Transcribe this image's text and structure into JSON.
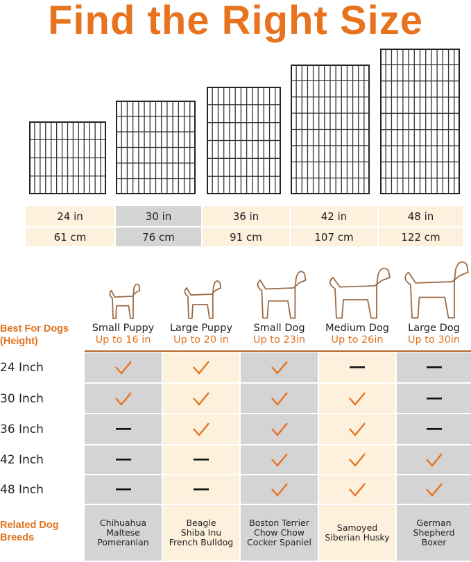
{
  "title": "Find the Right Size",
  "sizes": [
    {
      "in": "24 in",
      "cm": "61 cm"
    },
    {
      "in": "30 in",
      "cm": "76 cm"
    },
    {
      "in": "36 in",
      "cm": "91 cm"
    },
    {
      "in": "42 in",
      "cm": "107 cm"
    },
    {
      "in": "48 in",
      "cm": "122 cm"
    }
  ],
  "best_for_label": "Best For Dogs (Height)",
  "dogs": [
    {
      "name": "Small Puppy",
      "height": "Up to 16 in"
    },
    {
      "name": "Large Puppy",
      "height": "Up to 20 in"
    },
    {
      "name": "Small Dog",
      "height": "Up to 23in"
    },
    {
      "name": "Medium Dog",
      "height": "Up to 26in"
    },
    {
      "name": "Large Dog",
      "height": "Up to 30in"
    }
  ],
  "rows": [
    {
      "label": "24 Inch",
      "fit": [
        true,
        true,
        true,
        false,
        false
      ]
    },
    {
      "label": "30 Inch",
      "fit": [
        true,
        true,
        true,
        true,
        false
      ]
    },
    {
      "label": "36 Inch",
      "fit": [
        false,
        true,
        true,
        true,
        false
      ]
    },
    {
      "label": "42 Inch",
      "fit": [
        false,
        false,
        true,
        true,
        true
      ]
    },
    {
      "label": "48 Inch",
      "fit": [
        false,
        false,
        true,
        true,
        true
      ]
    }
  ],
  "breeds_label": "Related Dog Breeds",
  "breeds": [
    [
      "Chihuahua",
      "Maltese",
      "Pomeranian"
    ],
    [
      "Beagle",
      "Shiba Inu",
      "French Bulldog"
    ],
    [
      "Boston Terrier",
      "Chow Chow",
      "Cocker Spaniel"
    ],
    [
      "Samoyed",
      "Siberian Husky"
    ],
    [
      "German",
      "Shepherd",
      "Boxer"
    ]
  ],
  "colors": {
    "accent": "#e8731f",
    "beige": "#fdf0dc",
    "gray": "#d4d4d4",
    "dog_outline": "#9a6a45"
  }
}
